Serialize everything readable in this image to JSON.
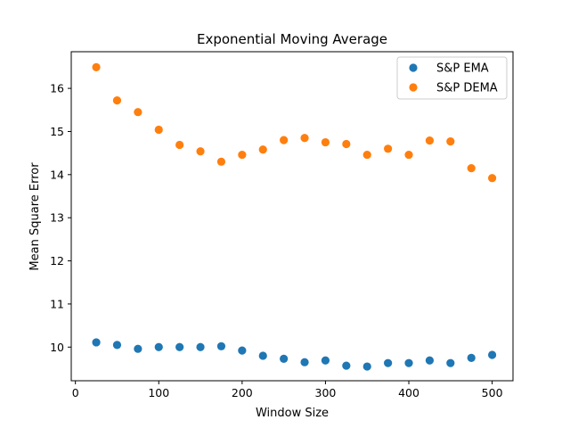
{
  "chart_data": {
    "type": "scatter",
    "title": "Exponential Moving Average",
    "xlabel": "Window Size",
    "ylabel": "Mean Square Error",
    "xlim": [
      -5,
      525
    ],
    "ylim": [
      9.22,
      16.85
    ],
    "xticks": [
      0,
      100,
      200,
      300,
      400,
      500
    ],
    "yticks": [
      10,
      11,
      12,
      13,
      14,
      15,
      16
    ],
    "grid": false,
    "legend_position": "upper-right",
    "x": [
      25,
      50,
      75,
      100,
      125,
      150,
      175,
      200,
      225,
      250,
      275,
      300,
      325,
      350,
      375,
      400,
      425,
      450,
      475,
      500
    ],
    "series": [
      {
        "name": "S&P EMA",
        "color": "#1f77b4",
        "values": [
          10.11,
          10.05,
          9.96,
          10.0,
          10.0,
          10.0,
          10.02,
          9.92,
          9.8,
          9.73,
          9.65,
          9.69,
          9.57,
          9.55,
          9.63,
          9.63,
          9.69,
          9.63,
          9.75,
          9.82
        ]
      },
      {
        "name": "S&P DEMA",
        "color": "#ff7f0e",
        "values": [
          16.49,
          15.72,
          15.45,
          15.04,
          14.69,
          14.54,
          14.3,
          14.46,
          14.58,
          14.8,
          14.85,
          14.75,
          14.71,
          14.46,
          14.6,
          14.46,
          14.79,
          14.77,
          14.15,
          13.92
        ]
      }
    ]
  }
}
